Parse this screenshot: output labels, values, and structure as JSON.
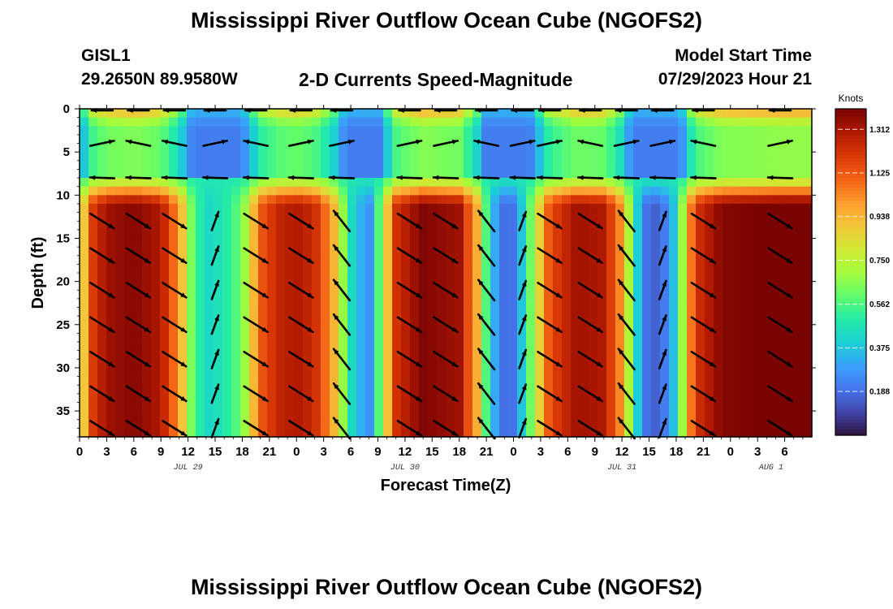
{
  "header": {
    "title": "Mississippi River Outflow Ocean Cube (NGOFS2)",
    "station": "GISL1",
    "coords": "29.2650N  89.9580W",
    "subtitle": "2-D Currents Speed-Magnitude",
    "model_start_label": "Model Start Time",
    "model_start_value": "07/29/2023 Hour 21"
  },
  "footer": {
    "title": "Mississippi River Outflow Ocean Cube (NGOFS2)"
  },
  "chart_data": {
    "type": "heatmap",
    "title": "2-D Currents Speed-Magnitude",
    "xlabel": "Forecast Time(Z)",
    "ylabel": "Depth (ft)",
    "x_hours_range": [
      0,
      81
    ],
    "x_tick_labels": [
      "0",
      "3",
      "6",
      "9",
      "12",
      "15",
      "18",
      "21",
      "0",
      "3",
      "6",
      "9",
      "12",
      "15",
      "18",
      "21",
      "0",
      "3",
      "6",
      "9",
      "12",
      "15",
      "18",
      "21",
      "0",
      "3",
      "6"
    ],
    "date_labels": [
      {
        "text": "JUL 29",
        "hour": 12
      },
      {
        "text": "JUL 30",
        "hour": 36
      },
      {
        "text": "JUL 31",
        "hour": 60
      },
      {
        "text": "AUG 1",
        "hour": 76.5
      }
    ],
    "y_range_ft": [
      0,
      38
    ],
    "y_ticks": [
      0,
      5,
      10,
      15,
      20,
      25,
      30,
      35
    ],
    "colorbar": {
      "unit": "Knots",
      "min": 0.0,
      "max": 1.4,
      "ticks": [
        "0.188",
        "0.375",
        "0.562",
        "0.750",
        "0.938",
        "1.125",
        "1.312"
      ],
      "tick_values": [
        0.188,
        0.375,
        0.562,
        0.75,
        0.938,
        1.125,
        1.312
      ],
      "colors": [
        "#30123b",
        "#4145ab",
        "#4675ed",
        "#39a2fc",
        "#1bcfd4",
        "#24eca6",
        "#61fc6c",
        "#a4fc3b",
        "#d1e834",
        "#f3c63a",
        "#fe9b2d",
        "#f36315",
        "#d93806",
        "#b11901",
        "#7a0403"
      ]
    },
    "speed_cycle_hours": [
      {
        "hour": 0,
        "bottom": 0.65
      },
      {
        "hour": 1,
        "bottom": 1.15
      },
      {
        "hour": 3,
        "bottom": 1.33
      },
      {
        "hour": 6,
        "bottom": 1.38
      },
      {
        "hour": 9,
        "bottom": 1.3
      },
      {
        "hour": 11,
        "bottom": 1.0
      },
      {
        "hour": 12.5,
        "bottom": 0.6
      },
      {
        "hour": 14,
        "bottom": 0.42
      },
      {
        "hour": 16,
        "bottom": 0.48
      },
      {
        "hour": 18,
        "bottom": 0.62
      },
      {
        "hour": 20,
        "bottom": 1.12
      },
      {
        "hour": 22,
        "bottom": 1.26
      },
      {
        "hour": 24,
        "bottom": 1.3
      },
      {
        "hour": 26,
        "bottom": 1.24
      },
      {
        "hour": 28,
        "bottom": 0.98
      },
      {
        "hour": 30,
        "bottom": 0.45
      },
      {
        "hour": 32,
        "bottom": 0.24
      },
      {
        "hour": 33,
        "bottom": 0.55
      },
      {
        "hour": 35,
        "bottom": 1.22
      },
      {
        "hour": 38,
        "bottom": 1.39
      },
      {
        "hour": 42,
        "bottom": 1.33
      },
      {
        "hour": 44,
        "bottom": 0.95
      },
      {
        "hour": 45,
        "bottom": 0.55
      },
      {
        "hour": 46,
        "bottom": 0.3
      },
      {
        "hour": 47.5,
        "bottom": 0.12
      },
      {
        "hour": 49,
        "bottom": 0.4
      },
      {
        "hour": 50,
        "bottom": 0.65
      },
      {
        "hour": 52,
        "bottom": 1.15
      },
      {
        "hour": 55,
        "bottom": 1.33
      },
      {
        "hour": 58,
        "bottom": 1.3
      },
      {
        "hour": 60,
        "bottom": 1.0
      },
      {
        "hour": 61.5,
        "bottom": 0.45
      },
      {
        "hour": 62.5,
        "bottom": 0.2
      },
      {
        "hour": 64,
        "bottom": 0.15
      },
      {
        "hour": 65.5,
        "bottom": 0.3
      },
      {
        "hour": 67,
        "bottom": 0.8
      },
      {
        "hour": 68,
        "bottom": 1.2
      },
      {
        "hour": 71,
        "bottom": 1.38
      },
      {
        "hour": 75,
        "bottom": 1.4
      },
      {
        "hour": 78,
        "bottom": 1.42
      },
      {
        "hour": 81,
        "bottom": 1.42
      }
    ],
    "arrow_columns_hours": [
      2.5,
      6.5,
      10.5,
      15,
      19.5,
      24.5,
      29,
      36.5,
      40.5,
      45,
      49,
      52,
      56.5,
      60.5,
      64.5,
      69,
      77.5
    ]
  }
}
